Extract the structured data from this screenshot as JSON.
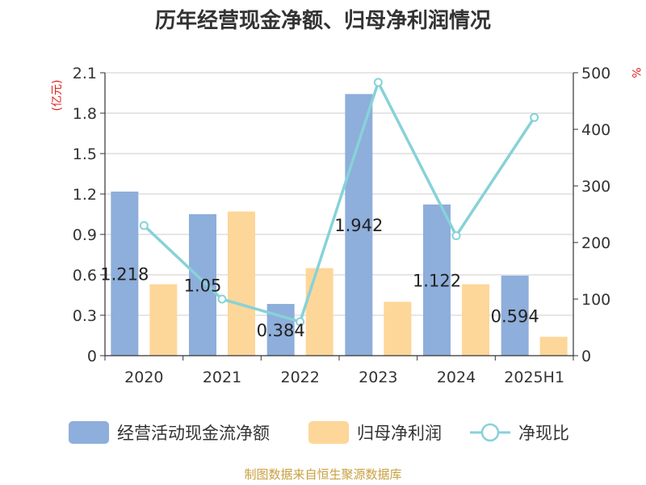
{
  "chart_data": {
    "type": "bar",
    "title": "历年经营现金净额、归母净利润情况",
    "categories": [
      "2020",
      "2021",
      "2022",
      "2023",
      "2024",
      "2025H1"
    ],
    "left_axis": {
      "unit": "(亿元)",
      "ylim": [
        0,
        2.1
      ],
      "ticks": [
        "0",
        "0.3",
        "0.6",
        "0.9",
        "1.2",
        "1.5",
        "1.8",
        "2.1"
      ]
    },
    "right_axis": {
      "unit": "%",
      "ylim": [
        0,
        500
      ],
      "ticks": [
        "0",
        "100",
        "200",
        "300",
        "400",
        "500"
      ]
    },
    "series": [
      {
        "name": "经营活动现金流净额",
        "type": "bar",
        "axis": "left",
        "color": "#8eaedb",
        "values": [
          1.218,
          1.05,
          0.384,
          1.942,
          1.122,
          0.594
        ],
        "labels": [
          "1.218",
          "1.05",
          "0.384",
          "1.942",
          "1.122",
          "0.594"
        ]
      },
      {
        "name": "归母净利润",
        "type": "bar",
        "axis": "left",
        "color": "#fdd699",
        "values": [
          0.53,
          1.07,
          0.65,
          0.4,
          0.53,
          0.14
        ]
      },
      {
        "name": "净现比",
        "type": "line",
        "axis": "right",
        "color": "#87d2d8",
        "values": [
          230,
          100,
          60,
          483,
          212,
          421
        ]
      }
    ],
    "grid": true,
    "legend": "bottom"
  },
  "source": "制图数据来自恒生聚源数据库"
}
